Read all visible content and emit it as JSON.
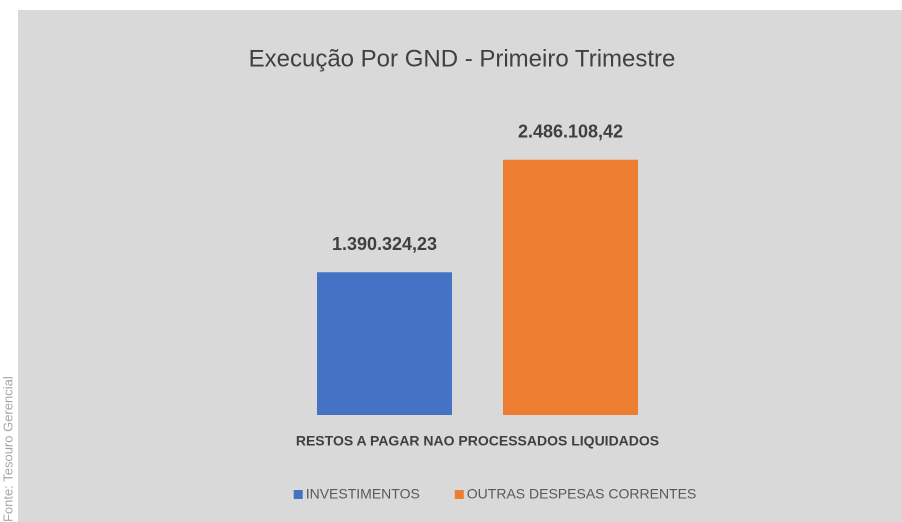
{
  "chart_data": {
    "type": "bar",
    "title": "Execução Por GND - Primeiro Trimestre",
    "categories": [
      "RESTOS A PAGAR NAO PROCESSADOS LIQUIDADOS"
    ],
    "series": [
      {
        "name": "INVESTIMENTOS",
        "color": "#4472c4",
        "values": [
          1390324.23
        ],
        "value_labels": [
          "1.390.324,23"
        ]
      },
      {
        "name": "OUTRAS DESPESAS CORRENTES",
        "color": "#ed7d31",
        "values": [
          2486108.42
        ],
        "value_labels": [
          "2.486.108,42"
        ]
      }
    ],
    "ylim": [
      0,
      3000000
    ],
    "legend": "bottom",
    "source": "Fonte: Tesouro Gerencial"
  }
}
